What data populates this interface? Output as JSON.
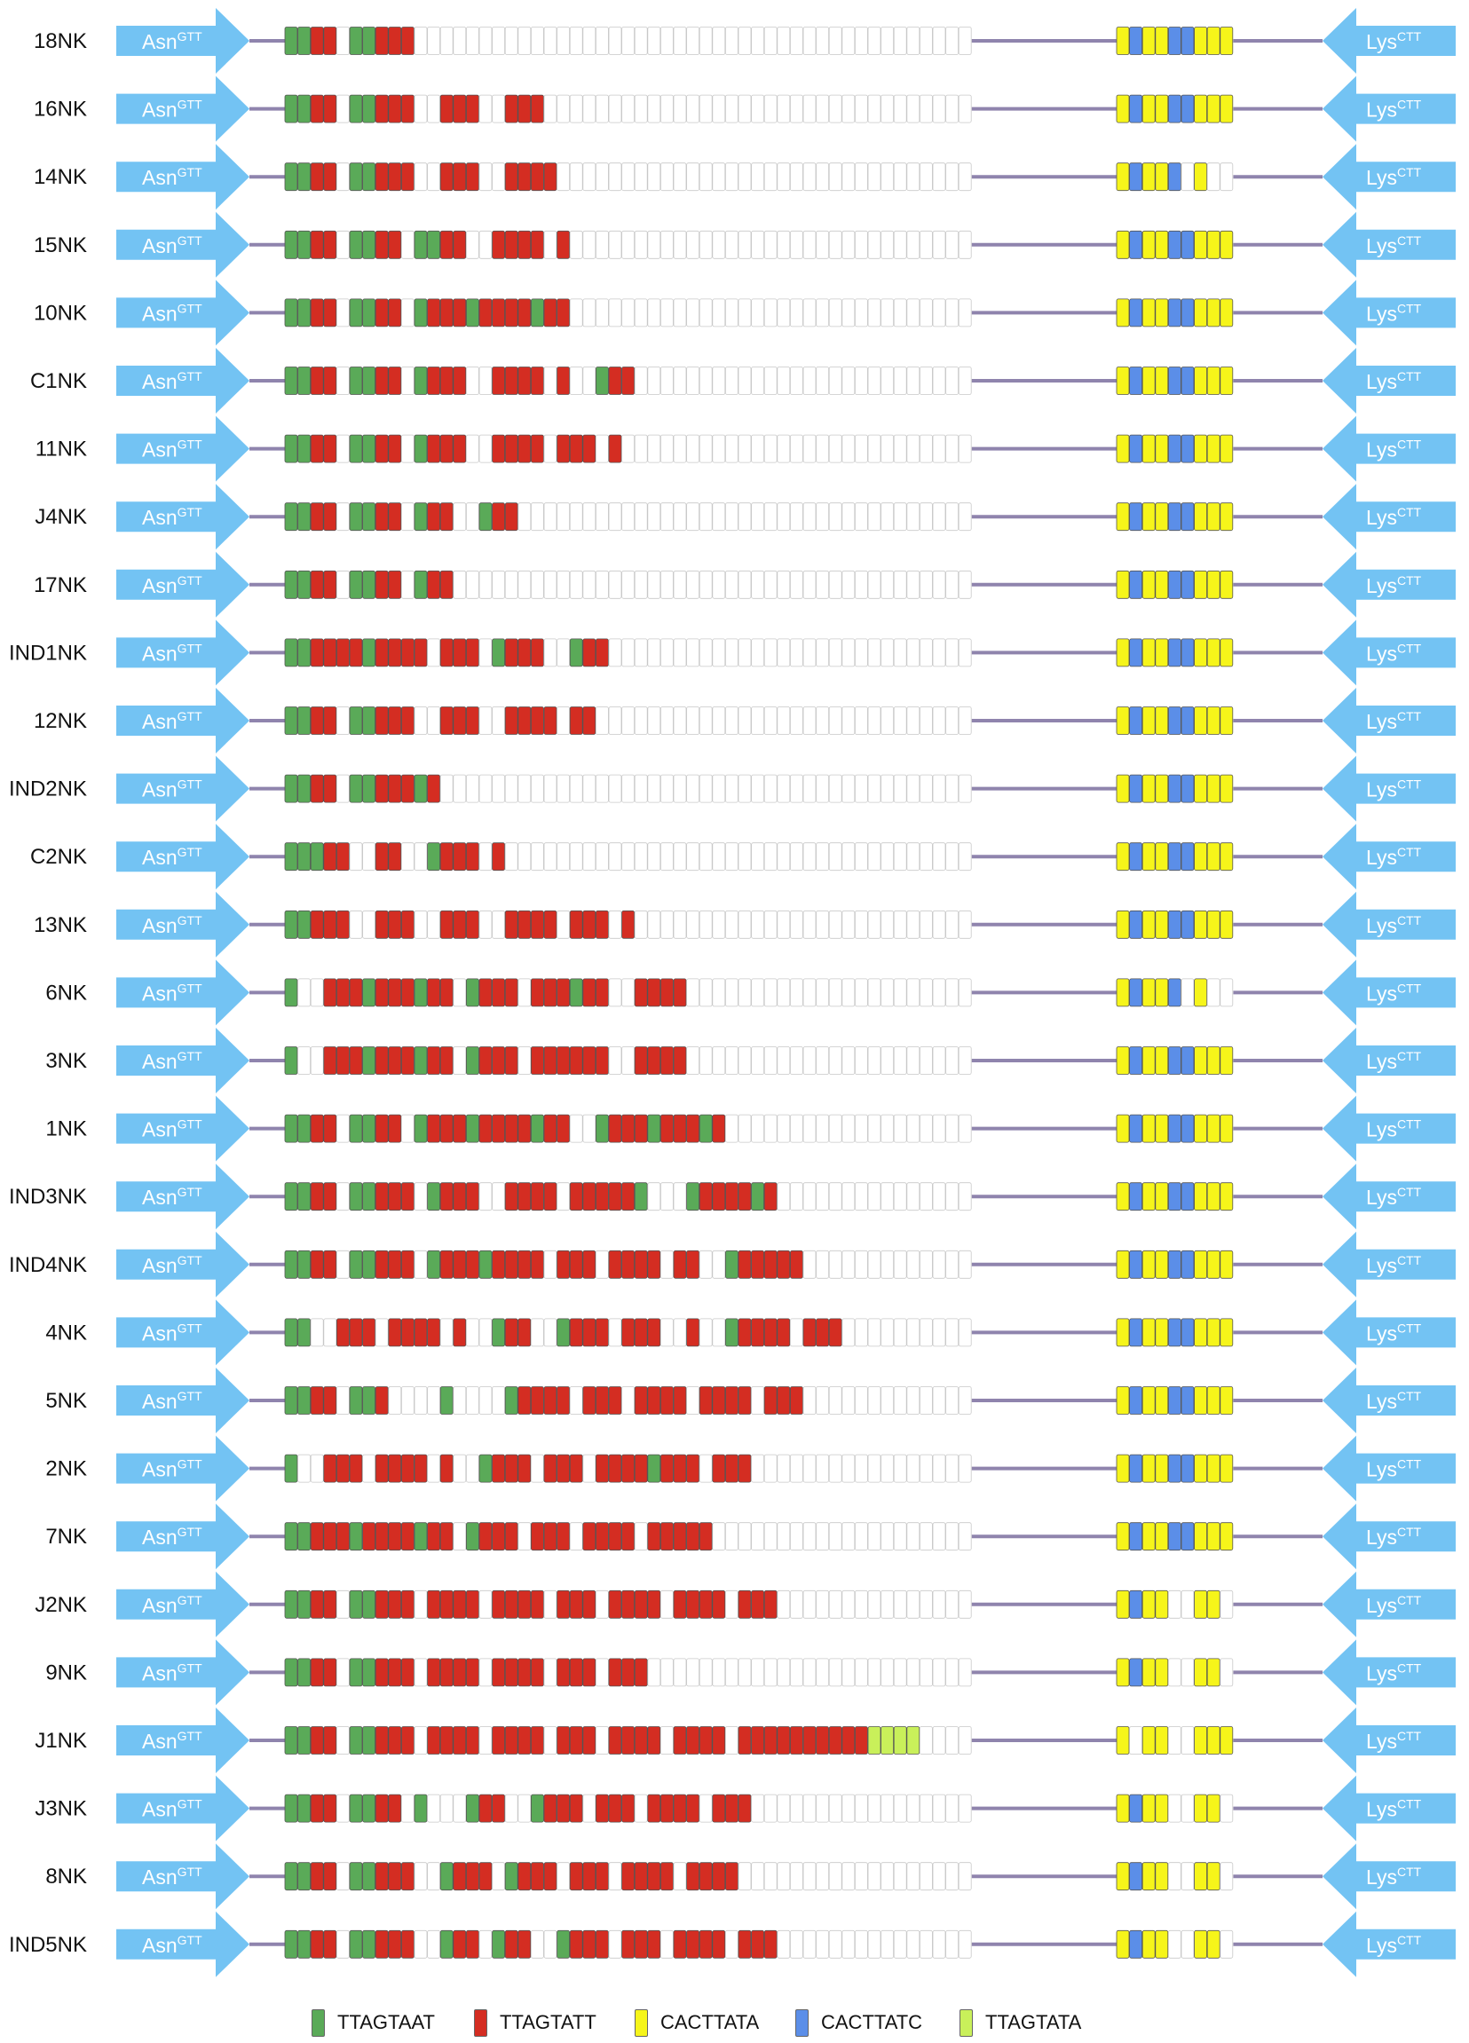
{
  "arrow_labels": {
    "left": "Asn",
    "left_sup": "GTT",
    "right": "Lys",
    "right_sup": "CTT"
  },
  "colors": {
    "g": "#5aaa58",
    "r": "#d42d22",
    "y": "#f6f51a",
    "b": "#5b8ee8",
    "l": "#c9f05a",
    "e": "#ffffff",
    "arrow": "#73c3f3",
    "line": "#8f84ad"
  },
  "legend": [
    {
      "code": "g",
      "label": "TTAGTAAT"
    },
    {
      "code": "r",
      "label": "TTAGTATT"
    },
    {
      "code": "y",
      "label": "CACTTATA"
    },
    {
      "code": "b",
      "label": "CACTTATC"
    },
    {
      "code": "l",
      "label": "TTAGTATA"
    }
  ],
  "rows": [
    {
      "name": "18NK",
      "left": "ggrreggrrr",
      "right": "ybyybbyyy"
    },
    {
      "name": "16NK",
      "left": "ggrreggrrreerrreerrr",
      "right": "ybyybbyyy"
    },
    {
      "name": "14NK",
      "left": "ggrreggrrreerrreerrrr",
      "right": "ybyybeyee"
    },
    {
      "name": "15NK",
      "left": "ggrreggrreggrreerrrrer",
      "right": "ybyybbyyy"
    },
    {
      "name": "10NK",
      "left": "ggrreggrregrrrgrrrrgrr",
      "right": "ybyybbyyy"
    },
    {
      "name": "C1NK",
      "left": "ggrreggrregrrreerrrrereegrr",
      "right": "ybyybbyyy"
    },
    {
      "name": "11NK",
      "left": "ggrreggrregrrreerrrrerrrer",
      "right": "ybyybbyyy"
    },
    {
      "name": "J4NK",
      "left": "ggrreggrregrreegrr",
      "right": "ybyybbyyy"
    },
    {
      "name": "17NK",
      "left": "ggrreggrregrr",
      "right": "ybyybbyyy"
    },
    {
      "name": "IND1NK",
      "left": "ggrrrrgrrrrerrregrrreegrr",
      "right": "ybyybbyyy"
    },
    {
      "name": "12NK",
      "left": "ggrreggrrreerrreerrrrerr",
      "right": "ybyybbyyy"
    },
    {
      "name": "IND2NK",
      "left": "ggrreggrrrgr",
      "right": "ybyybbyyy"
    },
    {
      "name": "C2NK",
      "left": "gggrreerreegrrrer",
      "right": "ybyybbyyy"
    },
    {
      "name": "13NK",
      "left": "ggrrreerrreerrreerrrrerrrer",
      "right": "ybyybbyyy"
    },
    {
      "name": "6NK",
      "left": "geerrrgrrrgrregrrrerrrgrreerrrr",
      "right": "ybyybeyee"
    },
    {
      "name": "3NK",
      "left": "geerrrgrrrgrregrrrerrrrrreerrrr",
      "right": "ybyybbyyy"
    },
    {
      "name": "1NK",
      "left": "ggrreggrregrrrgrrrrgrreegrrrgrrrgr",
      "right": "ybyybbyyy"
    },
    {
      "name": "IND3NK",
      "left": "ggrreggrrregrrreerrrrerrrrrgeeegrrrrgr",
      "right": "ybyybbyyy"
    },
    {
      "name": "IND4NK",
      "left": "ggrreggrrregrrrgrrrrerrrerrrrerreegrrrrr",
      "right": "ybyybbyyy"
    },
    {
      "name": "4NK",
      "left": "ggeerrrerrrrereegrreegrrrerrreereegrrrrerrr",
      "right": "ybyybbyyy"
    },
    {
      "name": "5NK",
      "left": "ggrreggreeeegeeeegrrrrerrrerrrrerrrrerrr",
      "right": "ybyybbyyy"
    },
    {
      "name": "2NK",
      "left": "geerrrerrrrereegrrrerrrerrrrgrrrerrr",
      "right": "ybyybbyyy"
    },
    {
      "name": "7NK",
      "left": "ggrrrgrrrrgrregrrrerrrerrrrerrrrr",
      "right": "ybyybbyyy"
    },
    {
      "name": "J2NK",
      "left": "ggrreggrrrerrrrerrrrerrrerrrrerrrrerrr",
      "right": "ybyyeeyye"
    },
    {
      "name": "9NK",
      "left": "ggrreggrrrerrrrerrrrerrrerrr",
      "right": "ybyyeeyye"
    },
    {
      "name": "J1NK",
      "left": "ggrreggrrrerrrrerrrrerrrerrrrerrrrerrrrrrrrrrllll",
      "right": "yeyyeeyyy"
    },
    {
      "name": "J3NK",
      "left": "ggrreggrregeeegrreegrrrerrrerrrrerrr",
      "right": "ybyyeeyye"
    },
    {
      "name": "8NK",
      "left": "ggrreggrrreegrrregrrrerrrerrrrerrrr",
      "right": "ybyyeeyye"
    },
    {
      "name": "IND5NK",
      "left": "ggrreggrrreegrregrreegrrrerrrerrrrerrr",
      "right": "ybyyeeyye"
    }
  ]
}
